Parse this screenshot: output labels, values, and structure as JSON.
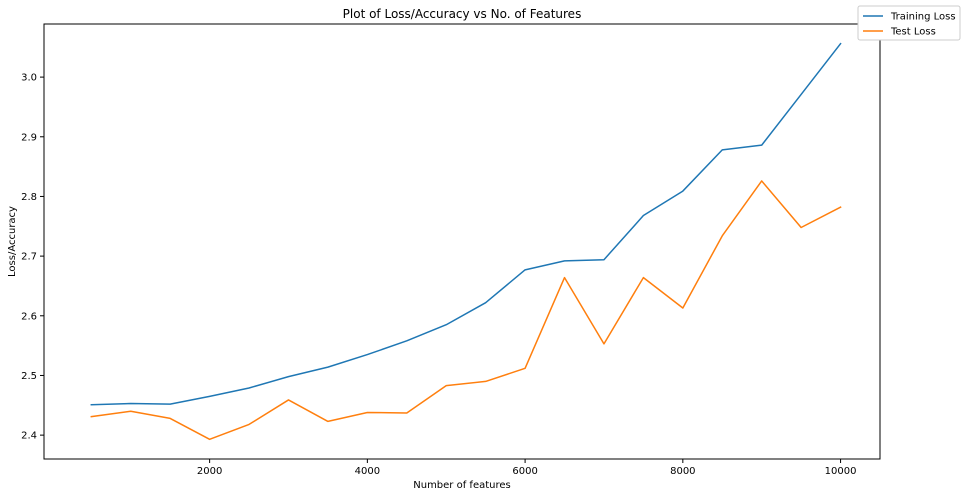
{
  "chart_data": {
    "type": "line",
    "title": "Plot of Loss/Accuracy vs No. of Features",
    "xlabel": "Number of features",
    "ylabel": "Loss/Accuracy",
    "xlim": [
      -100,
      10500
    ],
    "ylim": [
      2.36,
      3.089
    ],
    "xticks": [
      2000,
      4000,
      6000,
      8000,
      10000
    ],
    "yticks": [
      2.4,
      2.5,
      2.6,
      2.7,
      2.8,
      2.9,
      3.0
    ],
    "xtick_labels": [
      "2000",
      "4000",
      "6000",
      "8000",
      "10000"
    ],
    "ytick_labels": [
      "2.4",
      "2.5",
      "2.6",
      "2.7",
      "2.8",
      "2.9",
      "3.0"
    ],
    "grid": false,
    "legend_position": "top-right",
    "x": [
      500,
      1000,
      1500,
      2000,
      2500,
      3000,
      3500,
      4000,
      4500,
      5000,
      5500,
      6000,
      6500,
      7000,
      7500,
      8000,
      8500,
      9000,
      9500,
      10000
    ],
    "series": [
      {
        "name": "Training Loss",
        "color": "#1f77b4",
        "values": [
          2.451,
          2.453,
          2.452,
          2.465,
          2.479,
          2.498,
          2.514,
          2.535,
          2.558,
          2.585,
          2.622,
          2.677,
          2.692,
          2.694,
          2.768,
          2.809,
          2.878,
          2.886,
          2.971,
          3.056
        ]
      },
      {
        "name": "Test Loss",
        "color": "#ff7f0e",
        "values": [
          2.431,
          2.44,
          2.428,
          2.393,
          2.418,
          2.459,
          2.423,
          2.438,
          2.437,
          2.483,
          2.49,
          2.512,
          2.664,
          2.553,
          2.664,
          2.613,
          2.734,
          2.826,
          2.748,
          2.782
        ]
      }
    ]
  }
}
